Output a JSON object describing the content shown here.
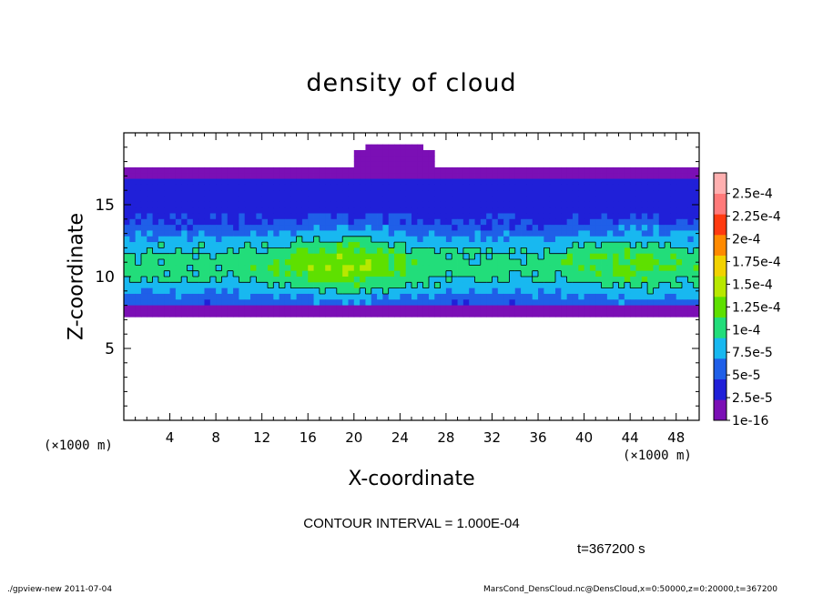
{
  "chart_data": {
    "type": "heatmap",
    "title": "density of cloud",
    "xlabel": "X-coordinate",
    "ylabel": "Z-coordinate",
    "x_unit_left": "(×1000 m)",
    "x_unit_right": "(×1000 m)",
    "xlim": [
      0,
      50
    ],
    "ylim": [
      0,
      20
    ],
    "x_ticks": [
      4,
      8,
      12,
      16,
      20,
      24,
      28,
      32,
      36,
      40,
      44,
      48
    ],
    "y_ticks": [
      5,
      10,
      15
    ],
    "colorbar": {
      "labels": [
        "1e-16",
        "2.5e-5",
        "5e-5",
        "7.5e-5",
        "1e-4",
        "1.25e-4",
        "1.5e-4",
        "1.75e-4",
        "2e-4",
        "2.25e-4",
        "2.5e-4"
      ],
      "colors": [
        "#7b0fb5",
        "#2020d8",
        "#1f5fe8",
        "#18b8f0",
        "#22dd7a",
        "#5ee000",
        "#b8e800",
        "#f2d200",
        "#ff8a00",
        "#ff3a10",
        "#ff7a7a",
        "#ffb0b0"
      ]
    },
    "cloud_band": {
      "z_bottom": 7.3,
      "z_top": 17.7,
      "core_z_center": 10.8,
      "peak_x_range": [
        14,
        24
      ],
      "cap_x_range": [
        20,
        27
      ],
      "cap_z_top": 19.4
    },
    "contour_interval": "CONTOUR INTERVAL = 1.000E-04",
    "time_label": "t=367200 s"
  },
  "footer": {
    "left": "./gpview-new  2011-07-04",
    "right": "MarsCond_DensCloud.nc@DensCloud,x=0:50000,z=0:20000,t=367200"
  }
}
